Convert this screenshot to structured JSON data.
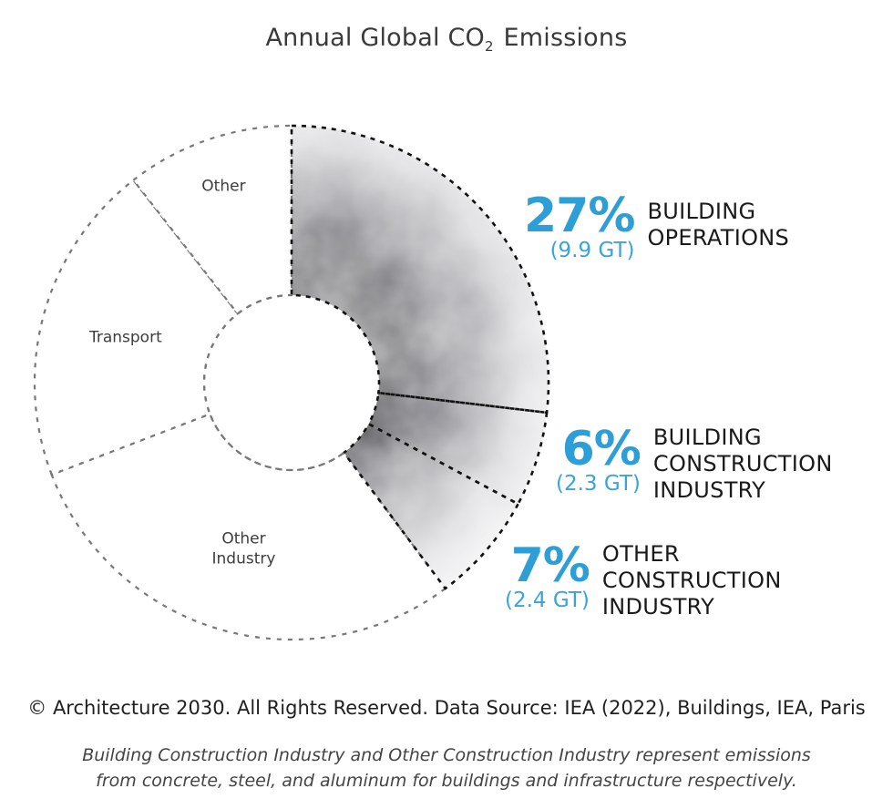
{
  "chart_data": {
    "type": "pie",
    "variant": "donut",
    "title": "Annual Global CO",
    "title_subscript": "2",
    "title_suffix": " Emissions",
    "highlighted_segments": [
      {
        "name": "Building Operations",
        "label_lines": "BUILDING\nOPERATIONS",
        "percent": 27,
        "percent_label": "27%",
        "value_gt": 9.9,
        "value_label": "(9.9 GT)"
      },
      {
        "name": "Building Construction Industry",
        "label_lines": "BUILDING\nCONSTRUCTION\nINDUSTRY",
        "percent": 6,
        "percent_label": "6%",
        "value_gt": 2.3,
        "value_label": "(2.3 GT)"
      },
      {
        "name": "Other Construction Industry",
        "label_lines": "OTHER\nCONSTRUCTION\nINDUSTRY",
        "percent": 7,
        "percent_label": "7%",
        "value_gt": 2.4,
        "value_label": "(2.4 GT)"
      }
    ],
    "other_segments": [
      {
        "name": "Other Industry",
        "label": "Other\nIndustry"
      },
      {
        "name": "Transport",
        "label": "Transport"
      },
      {
        "name": "Other",
        "label": "Other"
      }
    ],
    "colors": {
      "accent": "#2e9fd6",
      "highlight_dark": "#2b2a36",
      "highlight_light": "#f2f2f4",
      "outline_highlight": "#111111",
      "outline_other": "#777777"
    }
  },
  "footer": {
    "source": "© Architecture 2030. All Rights Reserved. Data Source: IEA (2022), Buildings, IEA, Paris",
    "note": "Building Construction Industry and Other Construction Industry represent emissions\nfrom concrete, steel, and aluminum for buildings and infrastructure respectively."
  }
}
